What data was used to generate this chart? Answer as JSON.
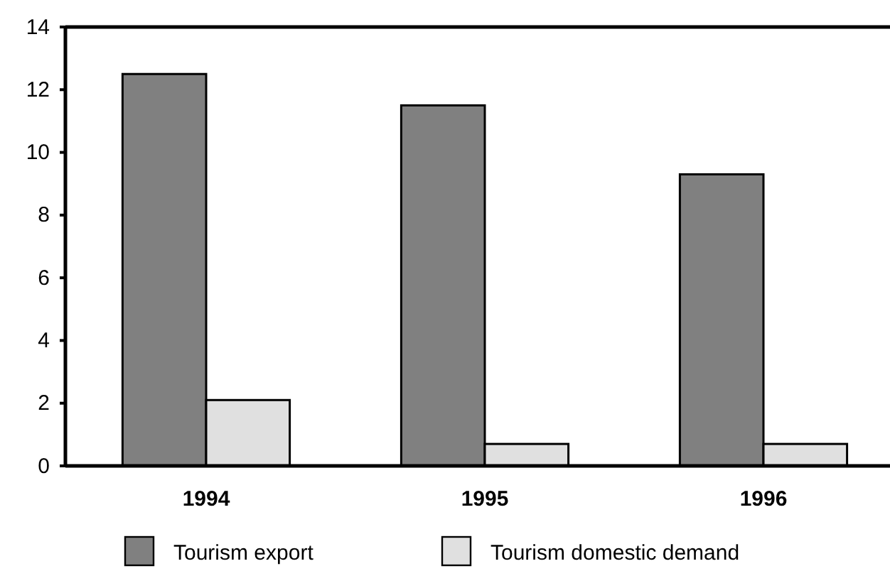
{
  "chart_data": {
    "type": "bar",
    "categories": [
      "1994",
      "1995",
      "1996"
    ],
    "series": [
      {
        "name": "Tourism export",
        "color": "#808080",
        "values": [
          12.5,
          11.5,
          9.3
        ]
      },
      {
        "name": "Tourism domestic demand",
        "color": "#e0e0e0",
        "values": [
          2.1,
          0.7,
          0.7
        ]
      }
    ],
    "ylim": [
      0,
      14
    ],
    "yticks": [
      0,
      2,
      4,
      6,
      8,
      10,
      12,
      14
    ],
    "grid": false,
    "legend": "bottom"
  }
}
